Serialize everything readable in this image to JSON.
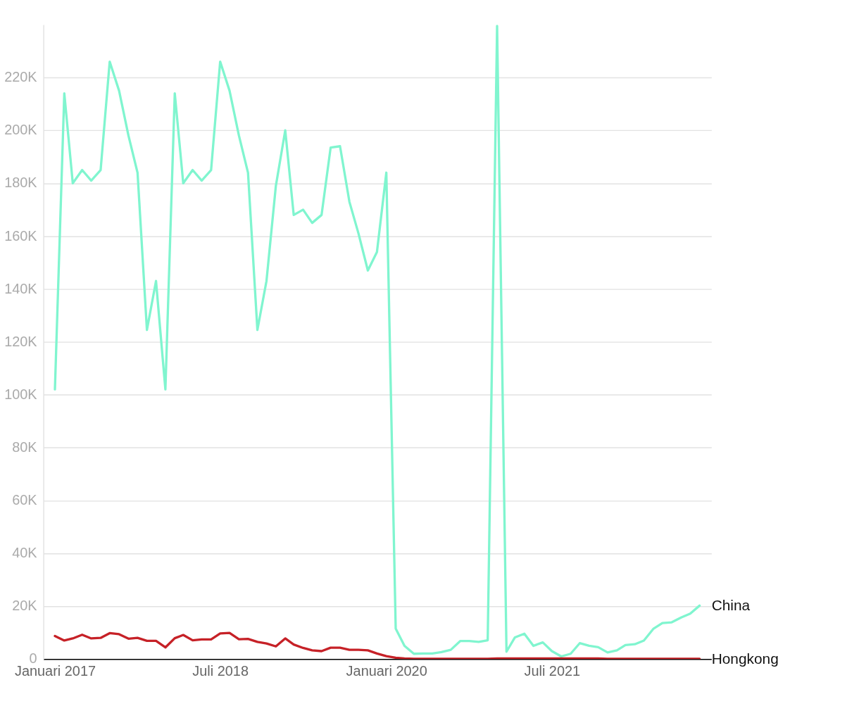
{
  "chart_data": {
    "type": "line",
    "x": [
      "2017-01",
      "2017-02",
      "2017-03",
      "2017-04",
      "2017-05",
      "2017-06",
      "2017-07",
      "2017-08",
      "2017-09",
      "2017-10",
      "2017-11",
      "2017-12",
      "2018-01",
      "2018-02",
      "2018-03",
      "2018-04",
      "2018-05",
      "2018-06",
      "2018-07",
      "2018-08",
      "2018-09",
      "2018-10",
      "2018-11",
      "2018-12",
      "2019-01",
      "2019-02",
      "2019-03",
      "2019-04",
      "2019-05",
      "2019-06",
      "2019-07",
      "2019-08",
      "2019-09",
      "2019-10",
      "2019-11",
      "2019-12",
      "2020-01",
      "2020-02",
      "2020-03",
      "2020-04",
      "2020-05",
      "2020-06",
      "2020-07",
      "2020-08",
      "2020-09",
      "2020-10",
      "2020-11",
      "2020-12",
      "2021-01",
      "2021-02",
      "2021-03",
      "2021-04",
      "2021-05",
      "2021-06",
      "2021-07",
      "2021-08",
      "2021-09",
      "2021-10",
      "2021-11",
      "2021-12",
      "2022-01",
      "2022-02",
      "2022-03",
      "2022-04",
      "2022-05",
      "2022-06",
      "2022-07",
      "2022-08",
      "2022-09",
      "2022-10",
      "2022-11"
    ],
    "series": [
      {
        "name": "China",
        "color": "#80f5cf",
        "values": [
          102,
          214,
          180,
          185,
          181,
          185,
          226,
          215,
          198,
          184,
          124.5,
          143,
          102,
          214,
          180,
          185,
          181,
          185,
          226,
          215,
          198,
          184,
          124.5,
          143,
          179,
          200,
          168,
          170,
          165,
          168,
          193.5,
          194,
          173,
          161,
          147,
          154,
          184,
          11.5,
          5,
          2,
          2.1,
          2.1,
          2.6,
          3.5,
          6.8,
          6.8,
          6.5,
          7.1,
          239.5,
          2.8,
          8.2,
          9.6,
          5,
          6.3,
          3,
          1,
          2,
          6,
          5,
          4.5,
          2.5,
          3.3,
          5.3,
          5.6,
          7,
          11.4,
          13.6,
          13.9,
          15.7,
          17.2,
          20.2
        ]
      },
      {
        "name": "Hongkong",
        "color": "#c62127",
        "values": [
          8.7,
          7,
          7.8,
          9.2,
          7.8,
          8,
          9.8,
          9.4,
          7.7,
          8,
          6.9,
          6.9,
          4.4,
          7.9,
          9.1,
          7.1,
          7.4,
          7.4,
          9.7,
          9.9,
          7.5,
          7.6,
          6.5,
          5.9,
          4.8,
          7.8,
          5.5,
          4.2,
          3.3,
          3,
          4.3,
          4.3,
          3.5,
          3.5,
          3.3,
          2.1,
          1.1,
          0.5,
          0.2,
          0.1,
          0.1,
          0.1,
          0.1,
          0.1,
          0.1,
          0.1,
          0.1,
          0.1,
          0.2,
          0.2,
          0.2,
          0.2,
          0.2,
          0.2,
          0.2,
          0.2,
          0.2,
          0.2,
          0.2,
          0.2,
          0.1,
          0.1,
          0.1,
          0.1,
          0.1,
          0.1,
          0.1,
          0.1,
          0.1,
          0.1,
          0.1
        ]
      }
    ],
    "xlim": [
      "2016-11-24",
      "2022-12-10"
    ],
    "xticks": [
      {
        "value": "2017-01",
        "label": "Januari 2017"
      },
      {
        "value": "2018-07",
        "label": "Juli 2018"
      },
      {
        "value": "2020-01",
        "label": "Januari 2020"
      },
      {
        "value": "2021-07",
        "label": "Juli 2021"
      }
    ],
    "ylim": [
      0,
      240
    ],
    "yticks": [
      {
        "value": 0,
        "label": "0"
      },
      {
        "value": 20,
        "label": "20K"
      },
      {
        "value": 40,
        "label": "40K"
      },
      {
        "value": 60,
        "label": "60K"
      },
      {
        "value": 80,
        "label": "80K"
      },
      {
        "value": 100,
        "label": "100K"
      },
      {
        "value": 120,
        "label": "120K"
      },
      {
        "value": 140,
        "label": "140K"
      },
      {
        "value": 160,
        "label": "160K"
      },
      {
        "value": 180,
        "label": "180K"
      },
      {
        "value": 200,
        "label": "200K"
      },
      {
        "value": 220,
        "label": "220K"
      }
    ],
    "grid": "y",
    "marker": "none",
    "line_style": "solid"
  }
}
